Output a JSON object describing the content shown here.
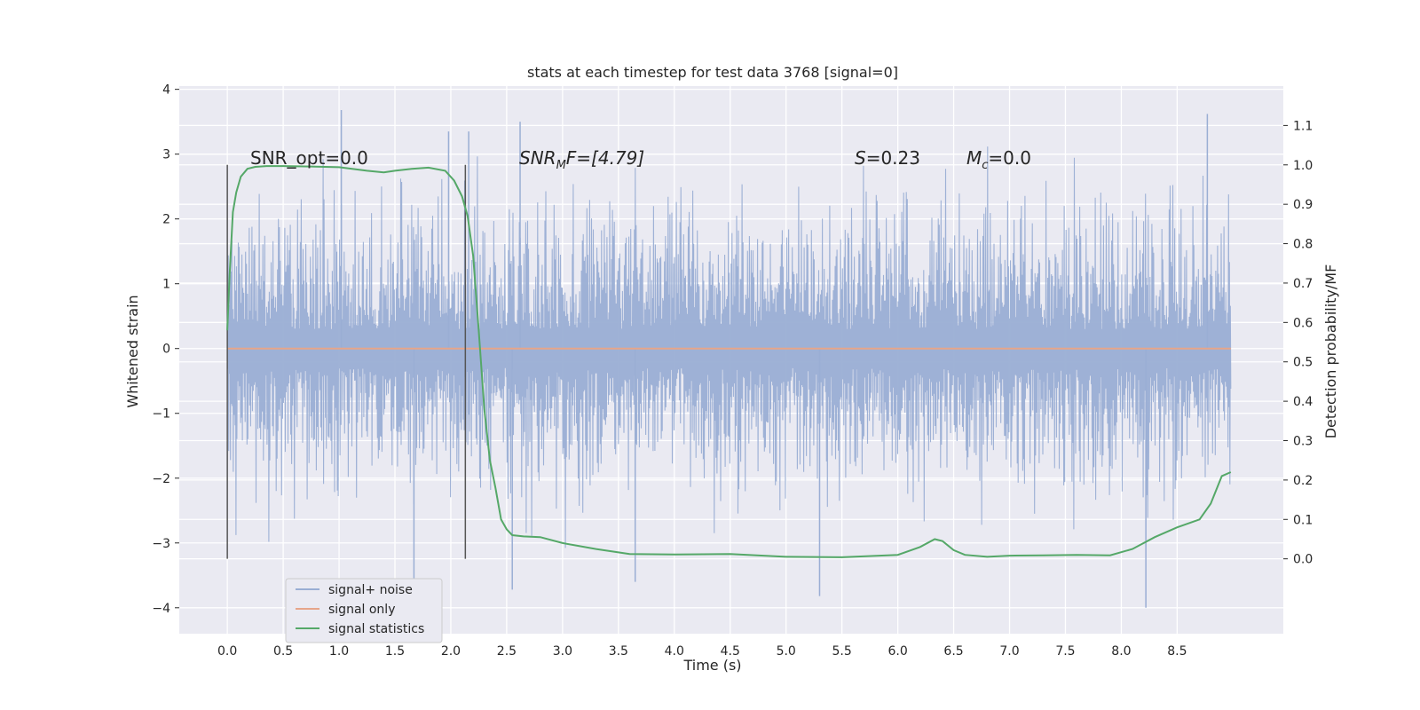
{
  "chart_data": {
    "type": "line",
    "title": "stats at each timestep for test data 3768 [signal=0]",
    "xlabel": "Time (s)",
    "ylabel": "Whitened strain",
    "y2label": "Detection probability/MF",
    "xlim": [
      -0.43,
      9.45
    ],
    "ylim": [
      -4.4,
      4.05
    ],
    "y2lim": [
      -0.19,
      1.2
    ],
    "xticks": [
      "0.0",
      "0.5",
      "1.0",
      "1.5",
      "2.0",
      "2.5",
      "3.0",
      "3.5",
      "4.0",
      "4.5",
      "5.0",
      "5.5",
      "6.0",
      "6.5",
      "7.0",
      "7.5",
      "8.0",
      "8.5"
    ],
    "yticks": [
      "4",
      "3",
      "2",
      "1",
      "0",
      "−1",
      "−2",
      "−3",
      "−4"
    ],
    "y2ticks": [
      "1.1",
      "1.0",
      "0.9",
      "0.8",
      "0.7",
      "0.6",
      "0.5",
      "0.4",
      "0.3",
      "0.2",
      "0.1",
      "0.0"
    ],
    "grid": true,
    "legend_position": "lower-left",
    "annotations": {
      "snr_opt": "SNR_opt=0.0",
      "snr_mf": "SNR<tspan>",
      "snr_mf_base": "SNR",
      "snr_mf_sub": "M",
      "snr_mf_rest": "F=[4.79]",
      "s_base": "S",
      "s_rest": "=0.23",
      "mc_base": "M",
      "mc_sub": "c",
      "mc_rest": "=0.0"
    },
    "vertical_markers": [
      0.0,
      2.13
    ],
    "series": [
      {
        "name": "signal+ noise",
        "color": "#9aaed4",
        "description_t_range": [
          0.0,
          8.98
        ],
        "envelope_max": 3.7,
        "envelope_min": -4.0,
        "notable_peaks": [
          {
            "x": 1.02,
            "y": 3.68
          },
          {
            "x": 1.98,
            "y": 3.35
          },
          {
            "x": 2.16,
            "y": 3.35
          },
          {
            "x": 2.62,
            "y": 3.5
          },
          {
            "x": 8.77,
            "y": 3.62
          },
          {
            "x": 1.67,
            "y": -3.65
          },
          {
            "x": 3.65,
            "y": -3.6
          },
          {
            "x": 5.3,
            "y": -3.82
          },
          {
            "x": 8.22,
            "y": -4.0
          },
          {
            "x": 2.55,
            "y": -3.72
          }
        ]
      },
      {
        "name": "signal only",
        "color": "#e6a58a",
        "x": [
          0.0,
          8.98
        ],
        "y": [
          0.0,
          0.0
        ]
      },
      {
        "name": "signal statistics",
        "color": "#55a868",
        "x": [
          0.0,
          0.02,
          0.05,
          0.08,
          0.12,
          0.18,
          0.25,
          0.35,
          0.5,
          0.75,
          1.0,
          1.25,
          1.4,
          1.5,
          1.65,
          1.8,
          1.95,
          2.03,
          2.1,
          2.15,
          2.2,
          2.25,
          2.3,
          2.35,
          2.4,
          2.45,
          2.5,
          2.55,
          2.65,
          2.8,
          3.0,
          3.3,
          3.6,
          4.0,
          4.5,
          5.0,
          5.5,
          6.0,
          6.2,
          6.33,
          6.4,
          6.5,
          6.6,
          6.8,
          7.0,
          7.3,
          7.6,
          7.9,
          8.1,
          8.3,
          8.5,
          8.7,
          8.8,
          8.9,
          8.98
        ],
        "y": [
          0.58,
          0.72,
          0.88,
          0.93,
          0.97,
          0.99,
          0.995,
          0.997,
          0.997,
          0.996,
          0.994,
          0.985,
          0.981,
          0.985,
          0.99,
          0.993,
          0.985,
          0.96,
          0.92,
          0.87,
          0.77,
          0.58,
          0.38,
          0.25,
          0.18,
          0.1,
          0.075,
          0.06,
          0.057,
          0.055,
          0.04,
          0.025,
          0.012,
          0.011,
          0.012,
          0.005,
          0.004,
          0.01,
          0.03,
          0.05,
          0.045,
          0.022,
          0.01,
          0.005,
          0.008,
          0.009,
          0.01,
          0.009,
          0.025,
          0.055,
          0.08,
          0.1,
          0.14,
          0.21,
          0.22
        ]
      }
    ]
  }
}
